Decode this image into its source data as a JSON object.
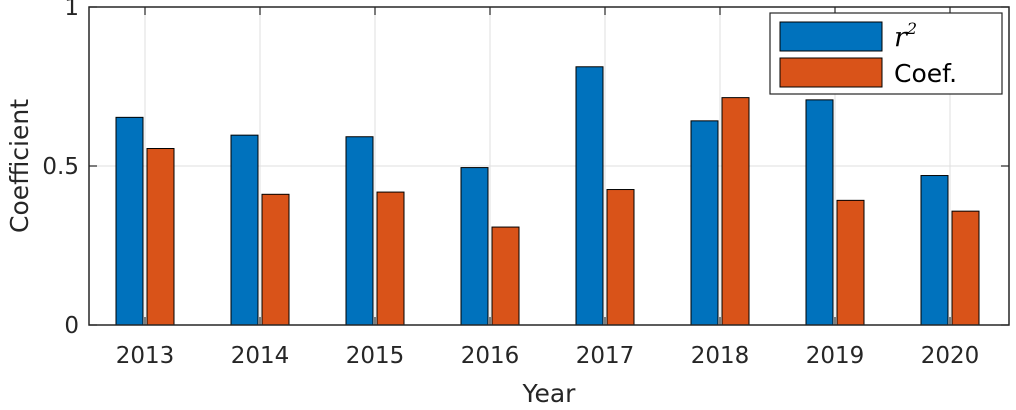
{
  "chart_data": {
    "type": "bar",
    "categories": [
      "2013",
      "2014",
      "2015",
      "2016",
      "2017",
      "2018",
      "2019",
      "2020"
    ],
    "series": [
      {
        "name": "r2",
        "label_base": "r",
        "label_sup": "2",
        "color": "#0072BD",
        "values": [
          0.653,
          0.597,
          0.592,
          0.495,
          0.812,
          0.642,
          0.708,
          0.47
        ]
      },
      {
        "name": "Coef.",
        "color": "#D95319",
        "values": [
          0.555,
          0.411,
          0.418,
          0.308,
          0.426,
          0.715,
          0.392,
          0.358
        ]
      }
    ],
    "xlabel": "Year",
    "ylabel": "Coefficient",
    "ylim": [
      0,
      1
    ],
    "yticks": [
      "0",
      "0.5",
      "1"
    ],
    "ytick_values": [
      0,
      0.5,
      1
    ],
    "grid": true,
    "legend_position": "top-right"
  }
}
